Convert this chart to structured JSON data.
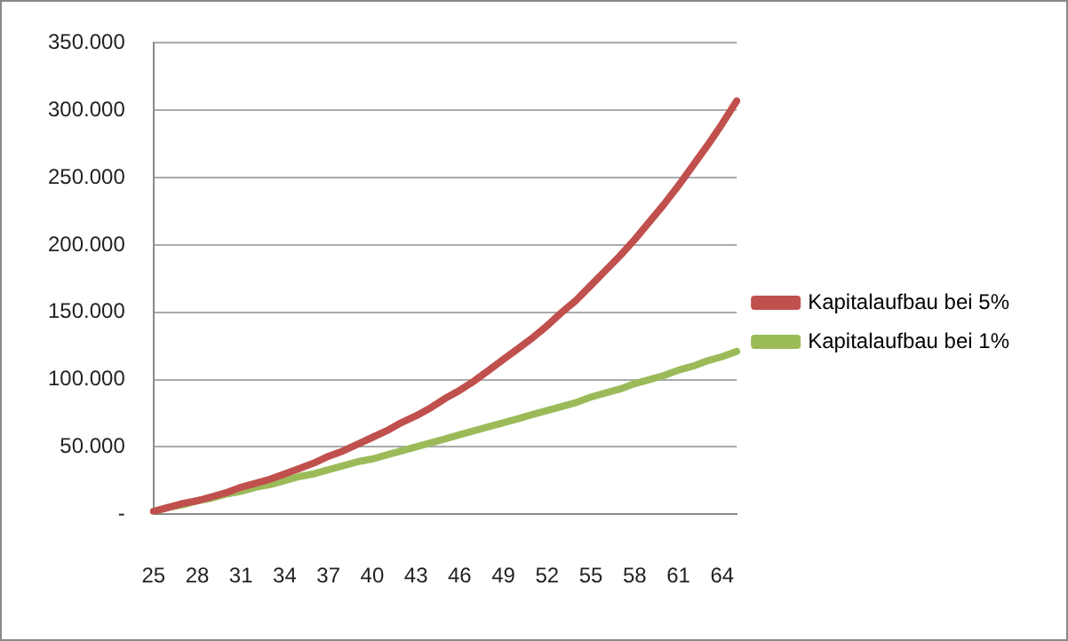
{
  "chart_data": {
    "type": "line",
    "categories": [
      "25",
      null,
      null,
      "28",
      null,
      null,
      "31",
      null,
      null,
      "34",
      null,
      null,
      "37",
      null,
      null,
      "40",
      null,
      null,
      "43",
      null,
      null,
      "46",
      null,
      null,
      "49",
      null,
      null,
      "52",
      null,
      null,
      "55",
      null,
      null,
      "58",
      null,
      null,
      "61",
      null,
      null,
      "64",
      null
    ],
    "series": [
      {
        "name": "Kapitalaufbau bei 5%",
        "color": "#c0504d",
        "values": [
          2000,
          5000,
          8000,
          10000,
          13000,
          16000,
          20000,
          23000,
          26000,
          30000,
          34000,
          38000,
          43000,
          47000,
          52000,
          57000,
          62000,
          68000,
          73000,
          79000,
          86000,
          92000,
          99000,
          107000,
          115000,
          123000,
          131000,
          140000,
          150000,
          159000,
          170000,
          181000,
          192000,
          204000,
          217000,
          230000,
          244000,
          259000,
          274000,
          290000,
          307000
        ]
      },
      {
        "name": "Kapitalaufbau bei 1%",
        "color": "#9bbb59",
        "values": [
          2000,
          5000,
          7000,
          10000,
          12000,
          15000,
          17000,
          20000,
          22000,
          25000,
          28000,
          30000,
          33000,
          36000,
          39000,
          41000,
          44000,
          47000,
          50000,
          53000,
          56000,
          59000,
          62000,
          65000,
          68000,
          71000,
          74000,
          77000,
          80000,
          83000,
          87000,
          90000,
          93000,
          97000,
          100000,
          103000,
          107000,
          110000,
          114000,
          117000,
          121000
        ]
      }
    ],
    "ylim": [
      0,
      350000
    ],
    "yticks": [
      {
        "value": 0,
        "label": "-"
      },
      {
        "value": 50000,
        "label": "50.000"
      },
      {
        "value": 100000,
        "label": "100.000"
      },
      {
        "value": 150000,
        "label": "150.000"
      },
      {
        "value": 200000,
        "label": "200.000"
      },
      {
        "value": 250000,
        "label": "250.000"
      },
      {
        "value": 300000,
        "label": "300.000"
      },
      {
        "value": 350000,
        "label": "350.000"
      }
    ],
    "grid": "y",
    "legend": "right",
    "marker": "none",
    "line_style": "solid"
  }
}
